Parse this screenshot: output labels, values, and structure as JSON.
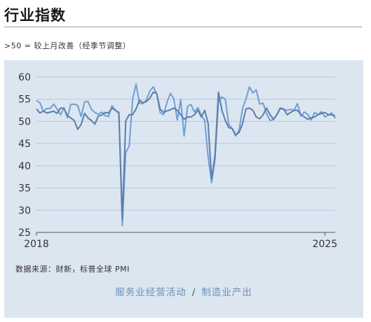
{
  "header": {
    "title": "行业指数",
    "subtitle": ">50 = 较上月改善（经季节调整）"
  },
  "source": "数据来源：财新，标普全球 PMI",
  "toggle": {
    "services_label": "服务业经营活动",
    "separator": "/",
    "manufacturing_label": "制造业产出"
  },
  "colors": {
    "panel_bg": "#dce6f1",
    "series_light": "#6f9fd6",
    "series_dark": "#5c7ea8",
    "grid": "#b6c7dd"
  },
  "chart_data": {
    "type": "line",
    "title": "",
    "xlabel": "",
    "ylabel": "",
    "ylim": [
      25,
      60
    ],
    "yticks": [
      25,
      30,
      35,
      40,
      45,
      50,
      55,
      60
    ],
    "xlim": [
      2018.0,
      2025.25
    ],
    "xtick_labels": [
      "2018",
      "2025"
    ],
    "xticks": [
      2018,
      2025
    ],
    "grid": true,
    "x": [
      2018.0,
      2018.083,
      2018.167,
      2018.25,
      2018.333,
      2018.417,
      2018.5,
      2018.583,
      2018.667,
      2018.75,
      2018.833,
      2018.917,
      2019.0,
      2019.083,
      2019.167,
      2019.25,
      2019.333,
      2019.417,
      2019.5,
      2019.583,
      2019.667,
      2019.75,
      2019.833,
      2019.917,
      2020.0,
      2020.083,
      2020.167,
      2020.25,
      2020.333,
      2020.417,
      2020.5,
      2020.583,
      2020.667,
      2020.75,
      2020.833,
      2020.917,
      2021.0,
      2021.083,
      2021.167,
      2021.25,
      2021.333,
      2021.417,
      2021.5,
      2021.583,
      2021.667,
      2021.75,
      2021.833,
      2021.917,
      2022.0,
      2022.083,
      2022.167,
      2022.25,
      2022.333,
      2022.417,
      2022.5,
      2022.583,
      2022.667,
      2022.75,
      2022.833,
      2022.917,
      2023.0,
      2023.083,
      2023.167,
      2023.25,
      2023.333,
      2023.417,
      2023.5,
      2023.583,
      2023.667,
      2023.75,
      2023.833,
      2023.917,
      2024.0,
      2024.083,
      2024.167,
      2024.25,
      2024.333,
      2024.417,
      2024.5,
      2024.583,
      2024.667,
      2024.75,
      2024.833,
      2024.917,
      2025.0,
      2025.083,
      2025.167,
      2025.25
    ],
    "series": [
      {
        "color": "#6f9fd6",
        "values": [
          54.7,
          54.2,
          52.3,
          52.9,
          52.9,
          53.9,
          52.8,
          51.5,
          53.1,
          50.8,
          53.8,
          53.9,
          53.6,
          51.1,
          54.4,
          54.5,
          52.7,
          52.0,
          51.6,
          52.1,
          51.3,
          51.1,
          53.5,
          52.5,
          51.8,
          26.5,
          43.0,
          44.4,
          55.0,
          58.4,
          54.1,
          54.0,
          54.8,
          56.8,
          57.8,
          56.3,
          52.0,
          51.5,
          54.3,
          56.3,
          55.1,
          50.3,
          54.9,
          46.7,
          53.4,
          53.8,
          52.1,
          53.1,
          51.4,
          50.2,
          42.0,
          36.2,
          41.4,
          54.5,
          55.5,
          55.0,
          49.3,
          48.4,
          46.7,
          48.0,
          52.9,
          55.0,
          57.8,
          56.4,
          57.1,
          53.9,
          54.1,
          51.8,
          50.2,
          50.4,
          51.5,
          52.9,
          52.7,
          52.5,
          52.7,
          52.5,
          54.0,
          51.2,
          52.1,
          51.6,
          50.3,
          52.0,
          51.5,
          52.2,
          51.0,
          51.4,
          51.9,
          50.7
        ]
      },
      {
        "color": "#5c7ea8",
        "values": [
          52.8,
          51.9,
          52.3,
          51.9,
          52.1,
          52.3,
          51.8,
          53.0,
          52.9,
          51.3,
          50.8,
          50.2,
          48.2,
          49.3,
          51.8,
          50.8,
          50.2,
          49.4,
          51.2,
          51.4,
          52.0,
          51.9,
          53.0,
          52.5,
          52.0,
          28.0,
          50.1,
          51.5,
          51.5,
          52.8,
          54.8,
          54.2,
          54.5,
          55.2,
          56.6,
          56.3,
          52.8,
          52.0,
          52.4,
          52.6,
          53.0,
          52.5,
          51.5,
          50.5,
          51.0,
          51.0,
          51.5,
          52.5,
          51.0,
          52.5,
          49.5,
          37.0,
          42.5,
          56.6,
          52.5,
          50.2,
          48.6,
          48.4,
          47.0,
          47.5,
          49.5,
          52.8,
          53.0,
          52.5,
          51.0,
          50.6,
          51.5,
          53.0,
          51.5,
          50.5,
          51.5,
          53.0,
          52.8,
          51.5,
          52.0,
          52.5,
          52.5,
          51.5,
          51.0,
          50.5,
          50.8,
          51.0,
          51.5,
          51.8,
          52.0,
          51.5,
          51.5,
          51.2
        ]
      }
    ]
  }
}
